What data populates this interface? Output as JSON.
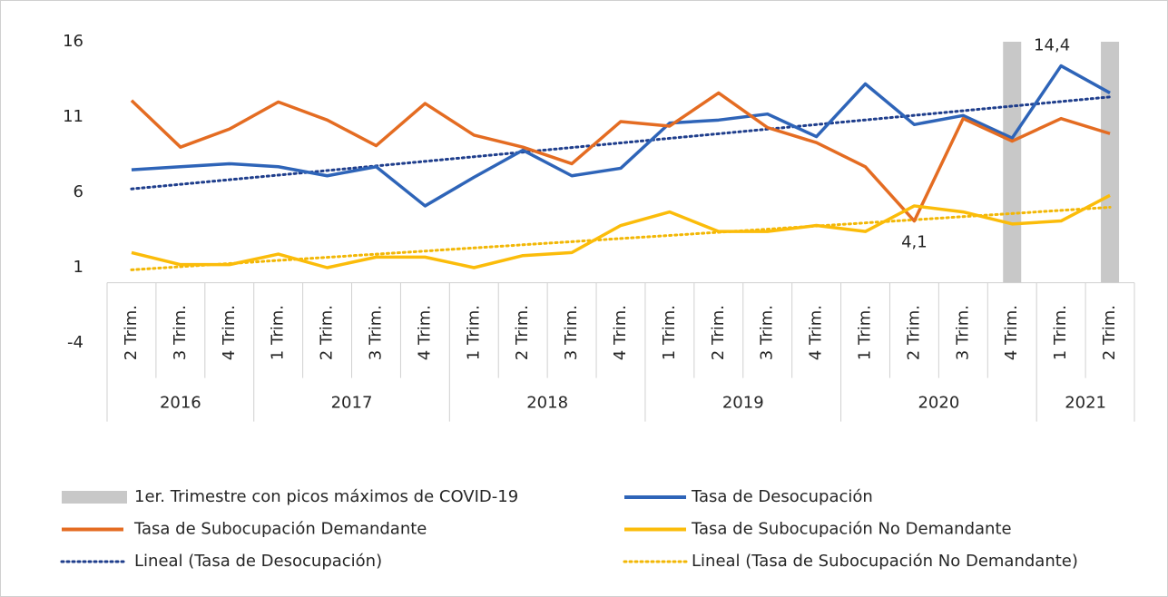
{
  "chart_data": {
    "type": "line",
    "categories": [
      "2 Trim.",
      "3 Trim.",
      "4 Trim.",
      "1 Trim.",
      "2 Trim.",
      "3 Trim.",
      "4 Trim.",
      "1 Trim.",
      "2 Trim.",
      "3 Trim.",
      "4 Trim.",
      "1 Trim.",
      "2 Trim.",
      "3 Trim.",
      "4 Trim.",
      "1 Trim.",
      "2 Trim.",
      "3 Trim.",
      "4 Trim.",
      "1 Trim.",
      "2 Trim."
    ],
    "group_labels": [
      "2016",
      null,
      null,
      "2017",
      null,
      null,
      null,
      "2018",
      null,
      null,
      null,
      "2019",
      null,
      null,
      null,
      "2020",
      null,
      null,
      null,
      "2021",
      null
    ],
    "ylim": [
      -4,
      16
    ],
    "yticks": [
      -4,
      1,
      6,
      11,
      16
    ],
    "grid": false,
    "series": [
      {
        "name": "1er. Trimestre con picos máximos de COVID-19",
        "type": "bar",
        "color": "#c8c8c8",
        "values": [
          null,
          null,
          null,
          null,
          null,
          null,
          null,
          null,
          null,
          null,
          null,
          null,
          null,
          null,
          null,
          null,
          null,
          null,
          16,
          null,
          16
        ]
      },
      {
        "name": "Tasa de Desocupación",
        "type": "line",
        "color": "#2e64b8",
        "values": [
          7.5,
          7.7,
          7.9,
          7.7,
          7.1,
          7.7,
          5.1,
          7.0,
          8.8,
          7.1,
          7.6,
          10.6,
          10.8,
          11.2,
          9.7,
          13.2,
          10.5,
          11.1,
          9.6,
          14.4,
          12.6
        ],
        "value_labels": [
          null,
          null,
          null,
          null,
          null,
          null,
          null,
          null,
          null,
          null,
          null,
          null,
          null,
          null,
          null,
          null,
          null,
          null,
          null,
          "14,4",
          null
        ]
      },
      {
        "name": "Tasa de Subocupación Demandante",
        "type": "line",
        "color": "#e46c22",
        "values": [
          12.1,
          9.0,
          10.2,
          12.0,
          10.8,
          9.1,
          11.9,
          9.8,
          9.0,
          7.9,
          10.7,
          10.4,
          12.6,
          10.3,
          9.3,
          7.7,
          4.1,
          10.9,
          9.4,
          10.9,
          9.9
        ],
        "value_labels": [
          null,
          null,
          null,
          null,
          null,
          null,
          null,
          null,
          null,
          null,
          null,
          null,
          null,
          null,
          null,
          null,
          "4,1",
          null,
          null,
          null,
          null
        ]
      },
      {
        "name": "Tasa de Subocupación No Demandante",
        "type": "line",
        "color": "#fbbc0a",
        "values": [
          2.0,
          1.2,
          1.2,
          1.9,
          1.0,
          1.7,
          1.7,
          1.0,
          1.8,
          2.0,
          3.8,
          4.7,
          3.4,
          3.4,
          3.8,
          3.4,
          5.1,
          4.7,
          3.9,
          4.1,
          5.8
        ]
      }
    ],
    "trendlines": [
      {
        "name": "Lineal (Tasa de Desocupación)",
        "of": "Tasa de Desocupación",
        "color": "#1f3e8c"
      },
      {
        "name": "Lineal (Tasa de Subocupación No Demandante)",
        "of": "Tasa de Subocupación No Demandante",
        "color": "#f2b705"
      }
    ]
  }
}
